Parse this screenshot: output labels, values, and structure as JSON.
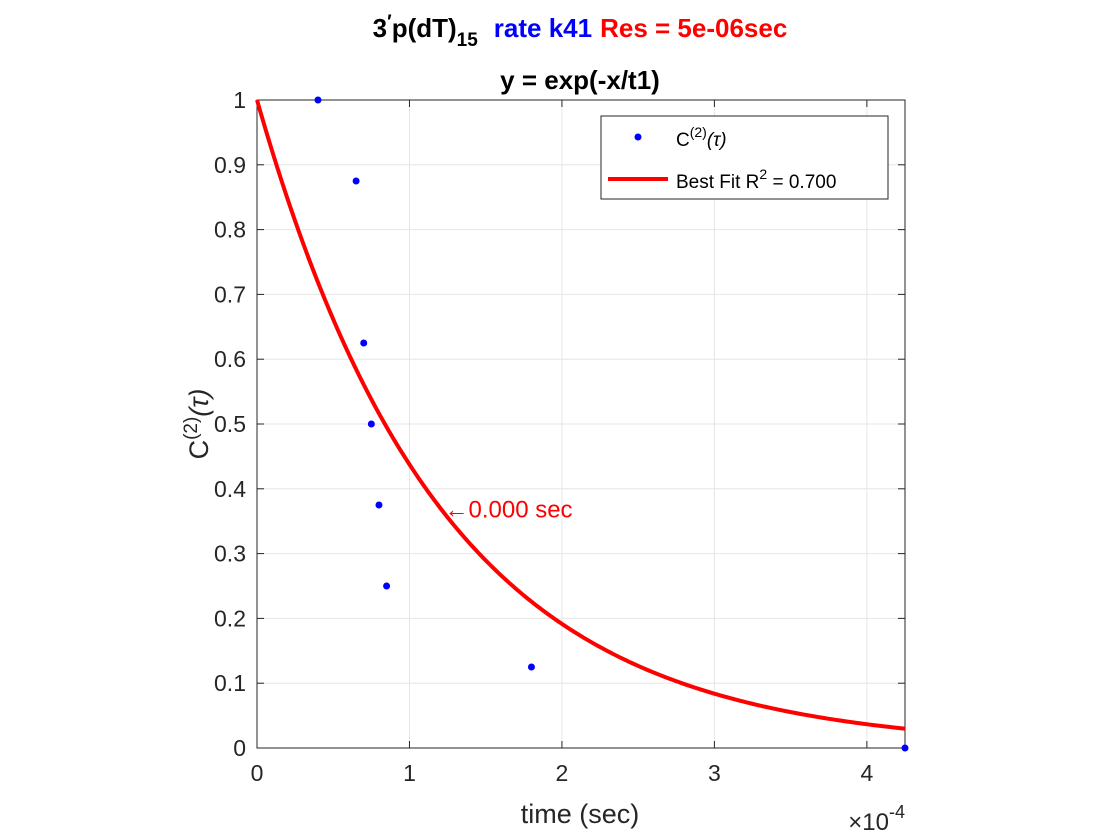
{
  "chart_data": {
    "type": "scatter",
    "title": {
      "part1_base": "3",
      "part1_prime": "′",
      "part1_mid": "p(dT)",
      "part1_sub": "15",
      "part2": "rate k41",
      "part3": "Res = 5e-06sec",
      "colors": {
        "part1": "#000000",
        "part2": "#0000ff",
        "part3": "#ff0000"
      }
    },
    "subtitle": "y = exp(-x/t1)",
    "xlabel": "time (sec)",
    "ylabel": {
      "base": "C",
      "sup": "(2)",
      "arg": "(τ)"
    },
    "x_exponent": {
      "prefix": "×10",
      "power": "-4"
    },
    "xlim": [
      0,
      0.000425
    ],
    "ylim": [
      0,
      1
    ],
    "x_ticks": [
      0,
      0.0001,
      0.0002,
      0.0003,
      0.0004
    ],
    "x_tick_labels": [
      "0",
      "1",
      "2",
      "3",
      "4"
    ],
    "y_ticks": [
      0,
      0.1,
      0.2,
      0.3,
      0.4,
      0.5,
      0.6,
      0.7,
      0.8,
      0.9,
      1
    ],
    "y_tick_labels": [
      "0",
      "0.1",
      "0.2",
      "0.3",
      "0.4",
      "0.5",
      "0.6",
      "0.7",
      "0.8",
      "0.9",
      "1"
    ],
    "grid": true,
    "legend_position": "top-right",
    "series": [
      {
        "name": "C(2)(τ)",
        "kind": "points",
        "color": "#0000ff",
        "x": [
          4e-05,
          6.5e-05,
          7e-05,
          7.5e-05,
          8e-05,
          8.5e-05,
          0.00018,
          0.000425
        ],
        "y": [
          1.0,
          0.875,
          0.625,
          0.5,
          0.375,
          0.25,
          0.125,
          0.0
        ]
      },
      {
        "name": "Best Fit R2 = 0.700",
        "kind": "fit-curve",
        "color": "#ff0000",
        "model": "exp(-x/t1)",
        "t1": 0.000121
      }
    ],
    "legend": [
      {
        "label_base": "C",
        "label_sup": "(2)",
        "label_arg": "(τ)",
        "marker": "dot",
        "color": "#0000ff"
      },
      {
        "label_base": "Best Fit R",
        "label_sup": "2",
        "label_tail": " = 0.700",
        "marker": "line",
        "color": "#ff0000"
      }
    ],
    "annotation": {
      "text": "←0.000 sec",
      "x": 0.000121,
      "y": 0.368,
      "color": "#ff0000"
    }
  }
}
